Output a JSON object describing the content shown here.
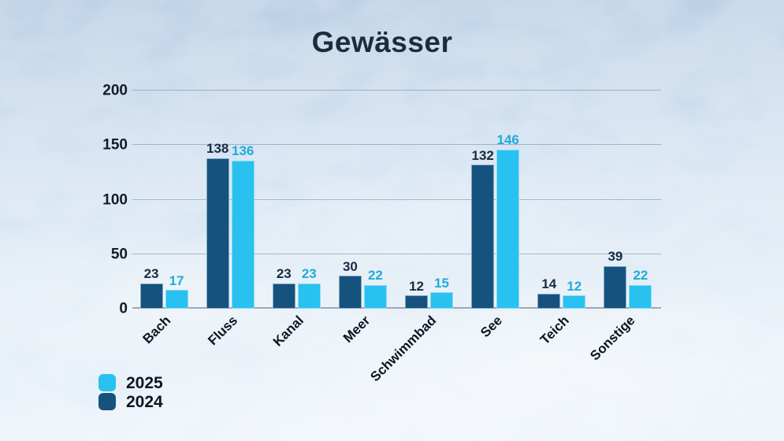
{
  "title": "Gewässer",
  "colors": {
    "series_2024": "#15527E",
    "series_2025": "#29C1F0",
    "label_2024": "#182B40",
    "label_2025": "#1FABDC",
    "axis_text": "#121C28",
    "category_text": "#0D1520",
    "gridline": "#69829B",
    "background_top": "#A2BEDB",
    "background_bottom": "#E5EFF9",
    "title_text": "#1D2C3B"
  },
  "chart_data": {
    "type": "bar",
    "title": "Gewässer",
    "categories": [
      "Bach",
      "Fluss",
      "Kanal",
      "Meer",
      "Schwimmbad",
      "See",
      "Teich",
      "Sonstige"
    ],
    "series": [
      {
        "name": "2024",
        "values": [
          23,
          138,
          23,
          30,
          12,
          132,
          14,
          39
        ]
      },
      {
        "name": "2025",
        "values": [
          17,
          136,
          23,
          22,
          15,
          146,
          12,
          22
        ]
      }
    ],
    "xlabel": "",
    "ylabel": "",
    "ylim": [
      0,
      200
    ],
    "yticks": [
      0,
      50,
      100,
      150,
      200
    ],
    "grid": true,
    "legend_position": "bottom-left",
    "x_tick_rotation_deg": 45
  },
  "legend": [
    {
      "label": "2025",
      "series": "2025"
    },
    {
      "label": "2024",
      "series": "2024"
    }
  ]
}
